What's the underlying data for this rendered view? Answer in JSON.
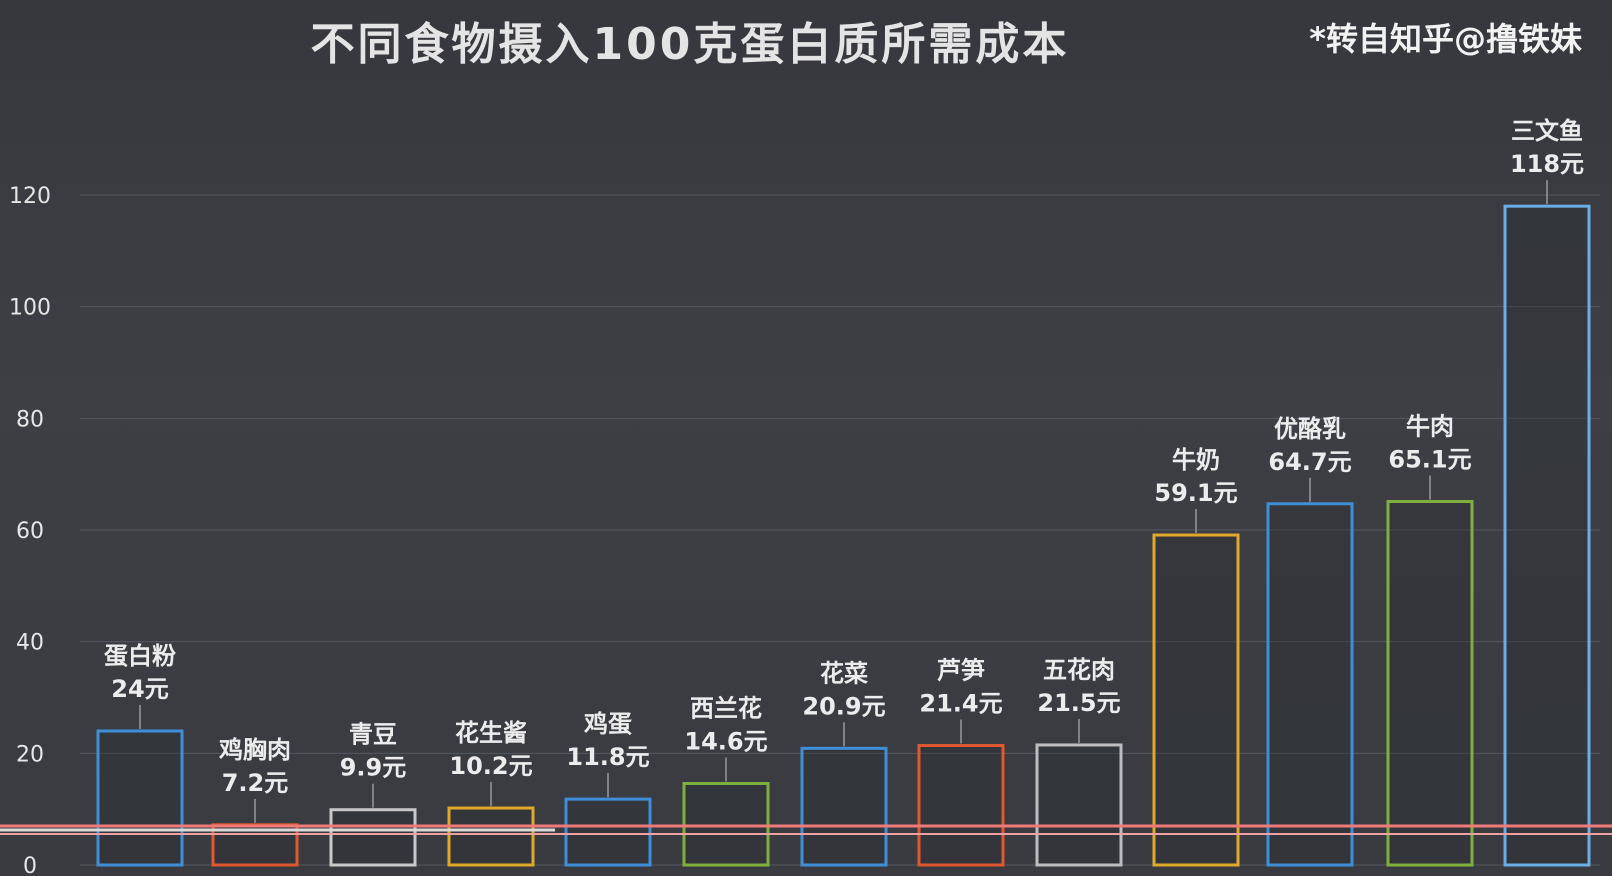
{
  "header": {
    "title": "不同食物摄入100克蛋白质所需成本",
    "credit": "*转自知乎@撸铁妹"
  },
  "chart_data": {
    "type": "bar",
    "title": "不同食物摄入100克蛋白质所需成本",
    "xlabel": "",
    "ylabel": "",
    "ylim": [
      0,
      120
    ],
    "yticks": [
      0,
      20,
      40,
      60,
      80,
      100,
      120
    ],
    "grid": true,
    "categories": [
      "蛋白粉",
      "鸡胸肉",
      "青豆",
      "花生酱",
      "鸡蛋",
      "西兰花",
      "花菜",
      "芦笋",
      "五花肉",
      "牛奶",
      "优酪乳",
      "牛肉",
      "三文鱼"
    ],
    "values": [
      24,
      7.2,
      9.9,
      10.2,
      11.8,
      14.6,
      20.9,
      21.4,
      21.5,
      59.1,
      64.7,
      65.1,
      118
    ],
    "value_labels": [
      "24元",
      "7.2元",
      "9.9元",
      "10.2元",
      "11.8元",
      "14.6元",
      "20.9元",
      "21.4元",
      "21.5元",
      "59.1元",
      "64.7元",
      "65.1元",
      "118元"
    ],
    "bar_colors": [
      "#3f8fd8",
      "#e0582f",
      "#c8c8c8",
      "#e1a92b",
      "#3f8fd8",
      "#7fb03f",
      "#3f8fd8",
      "#e0582f",
      "#bdbdbd",
      "#e1a92b",
      "#3f8fd8",
      "#7fb03f",
      "#6aaee8"
    ]
  }
}
